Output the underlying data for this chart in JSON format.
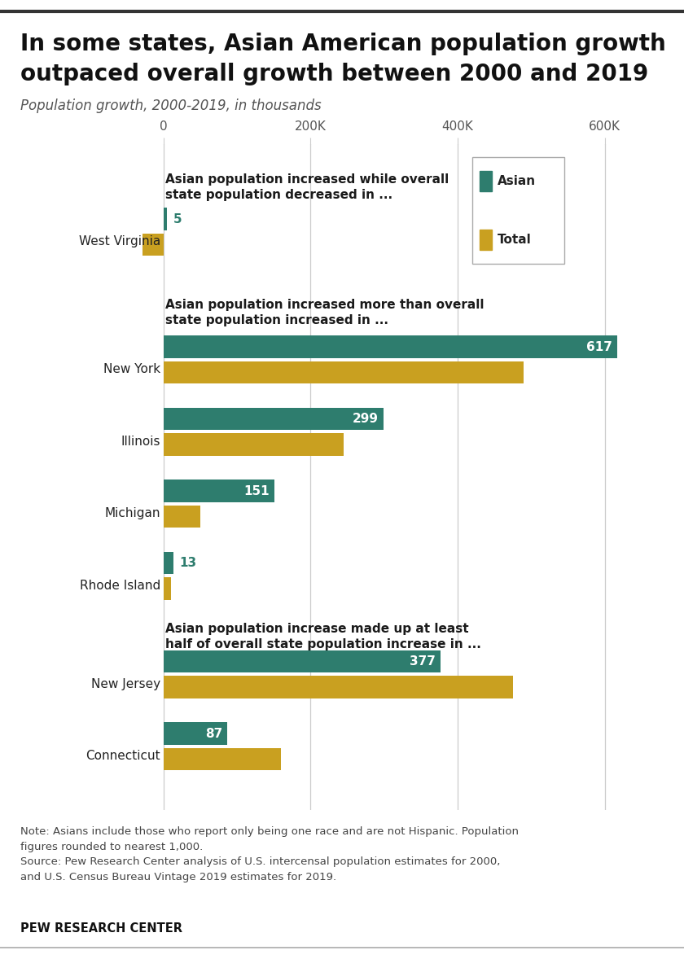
{
  "title_line1": "In some states, Asian American population growth",
  "title_line2": "outpaced overall growth between 2000 and 2019",
  "subtitle": "Population growth, 2000-2019, in thousands",
  "asian_color": "#2e7d6e",
  "total_color": "#c9a020",
  "background_color": "#ffffff",
  "xlim": [
    -55,
    680
  ],
  "xticks": [
    0,
    200,
    400,
    600
  ],
  "xtick_labels": [
    "0",
    "200K",
    "400K",
    "600K"
  ],
  "section1_header": "Asian population increased while overall\nstate population decreased in ...",
  "section2_header": "Asian population increased more than overall\nstate population increased in ...",
  "section3_header": "Asian population increase made up at least\nhalf of overall state population increase in ...",
  "states": [
    "West Virginia",
    "New York",
    "Illinois",
    "Michigan",
    "Rhode Island",
    "New Jersey",
    "Connecticut"
  ],
  "asian_values": [
    5,
    617,
    299,
    151,
    13,
    377,
    87
  ],
  "total_values": [
    -29,
    490,
    245,
    50,
    10,
    475,
    160
  ],
  "note_line1": "Note: Asians include those who report only being one race and are not Hispanic. Population",
  "note_line2": "figures rounded to nearest 1,000.",
  "note_line3": "Source: Pew Research Center analysis of U.S. intercensal population estimates for 2000,",
  "note_line4": "and U.S. Census Bureau Vintage 2019 estimates for 2019.",
  "source_label": "PEW RESEARCH CENTER",
  "top_border_color": "#333333",
  "bottom_border_color": "#aaaaaa"
}
